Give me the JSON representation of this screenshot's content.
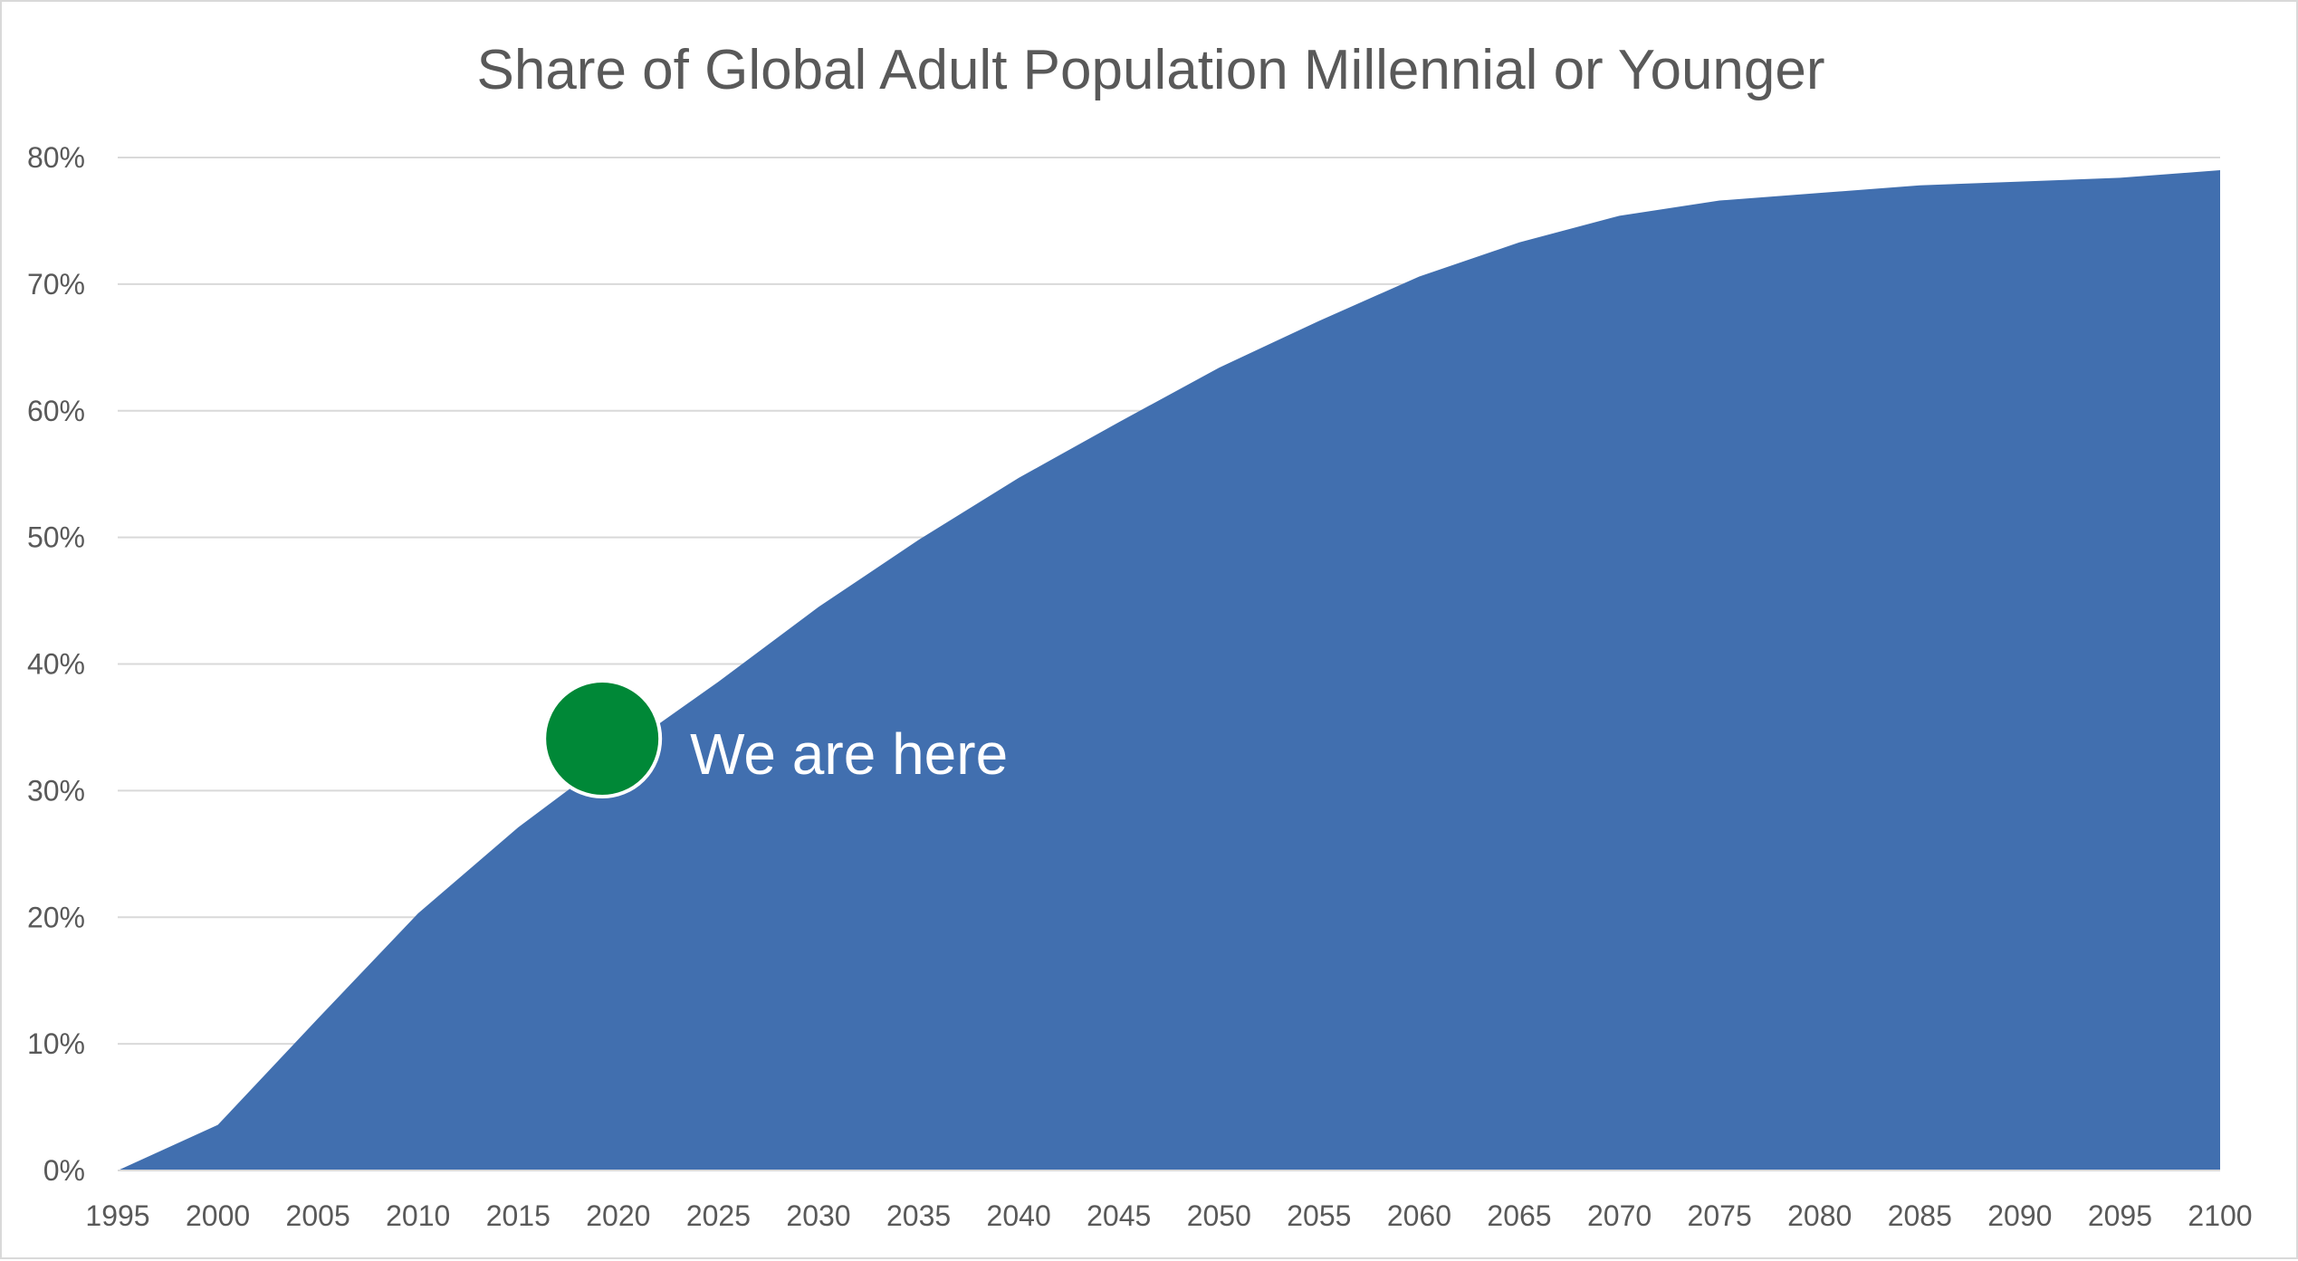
{
  "colors": {
    "area_fill": "#416faf",
    "gridline": "#d9d9d9",
    "axis_line": "#d9d9d9",
    "text": "#595959",
    "marker_fill": "#008837",
    "marker_stroke": "#ffffff",
    "annotation_text": "#ffffff"
  },
  "chart_data": {
    "type": "area",
    "title": "Share of Global Adult Population Millennial or Younger",
    "xlabel": "",
    "ylabel": "",
    "x": [
      1995,
      2000,
      2005,
      2010,
      2015,
      2020,
      2025,
      2030,
      2035,
      2040,
      2045,
      2050,
      2055,
      2060,
      2065,
      2070,
      2075,
      2080,
      2085,
      2090,
      2095,
      2100
    ],
    "x_tick_labels": [
      "1995",
      "2000",
      "2005",
      "2010",
      "2015",
      "2020",
      "2025",
      "2030",
      "2035",
      "2040",
      "2045",
      "2050",
      "2055",
      "2060",
      "2065",
      "2070",
      "2075",
      "2080",
      "2085",
      "2090",
      "2095",
      "2100"
    ],
    "series": [
      {
        "values": [
          0.0,
          3.6,
          12.0,
          20.3,
          27.1,
          33.0,
          38.6,
          44.5,
          49.8,
          54.7,
          59.1,
          63.4,
          67.1,
          70.6,
          73.3,
          75.4,
          76.6,
          77.2,
          77.8,
          78.1,
          78.4,
          79.0
        ]
      }
    ],
    "ylim": [
      0,
      80
    ],
    "y_ticks": [
      0,
      10,
      20,
      30,
      40,
      50,
      60,
      70,
      80
    ],
    "y_tick_labels": [
      "0%",
      "10%",
      "20%",
      "30%",
      "40%",
      "50%",
      "60%",
      "70%",
      "80%"
    ],
    "grid": true,
    "legend": "none",
    "annotations": [
      {
        "text": "We are here",
        "x": 2019.2,
        "y": 34.1,
        "marker": "circle"
      }
    ]
  }
}
